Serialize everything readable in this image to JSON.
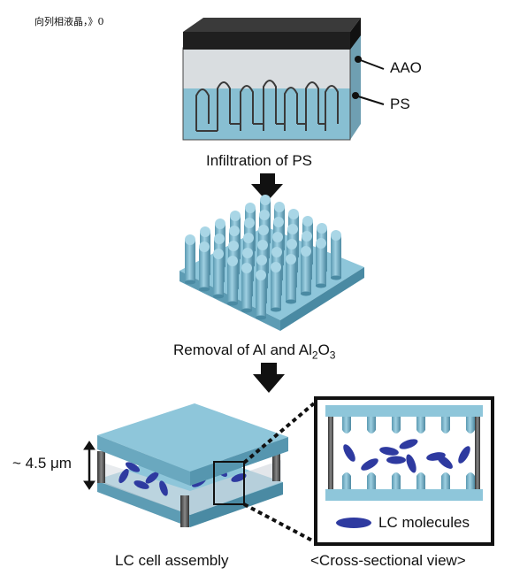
{
  "header_note": "向列相液晶，》0",
  "labels": {
    "aao": "AAO",
    "ps": "PS",
    "step1": "Infiltration of PS",
    "step2_prefix": "Removal of Al and Al",
    "step2_sub1": "2",
    "step2_mid": "O",
    "step2_sub2": "3",
    "gap": "~ 4.5 μm",
    "step3": "LC cell assembly",
    "cross_section": "<Cross-sectional view>",
    "legend": "LC molecules"
  },
  "colors": {
    "substrate": "#7fb9cf",
    "substrate_dark": "#5a9ab2",
    "pillar": "#8cc4d8",
    "aao_top": "#2b2b2b",
    "lc": "#2e3aa0",
    "post": "#555555"
  },
  "icons": [
    "down-arrow-icon",
    "double-arrow-icon",
    "lc-molecule-icon"
  ]
}
